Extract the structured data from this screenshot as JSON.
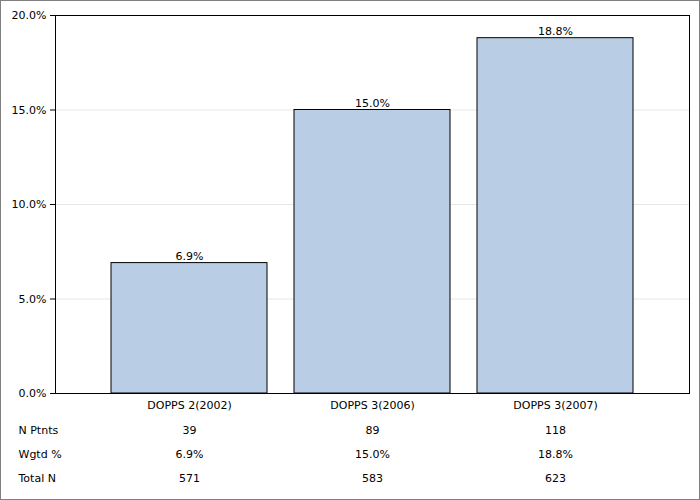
{
  "chart_data": {
    "type": "bar",
    "categories": [
      "DOPPS 2(2002)",
      "DOPPS 3(2006)",
      "DOPPS 3(2007)"
    ],
    "values": [
      6.9,
      15.0,
      18.8
    ],
    "value_labels": [
      "6.9%",
      "15.0%",
      "18.8%"
    ],
    "data_labels": true,
    "color": "#b9cde5",
    "ylim": [
      0,
      20
    ],
    "yticks": [
      {
        "value": 0,
        "label": "0.0%"
      },
      {
        "value": 5,
        "label": "5.0%"
      },
      {
        "value": 10,
        "label": "10.0%"
      },
      {
        "value": 15,
        "label": "15.0%"
      },
      {
        "value": 20,
        "label": "20.0%"
      }
    ],
    "grid": true,
    "table_rows": [
      {
        "name": "N Ptnts",
        "values": [
          39,
          89,
          118
        ]
      },
      {
        "name": "Wgtd %",
        "values": [
          6.9,
          15.0,
          18.8
        ],
        "value_labels": [
          "6.9%",
          "15.0%",
          "18.8%"
        ]
      },
      {
        "name": "Total N",
        "values": [
          571,
          583,
          623
        ]
      }
    ]
  }
}
